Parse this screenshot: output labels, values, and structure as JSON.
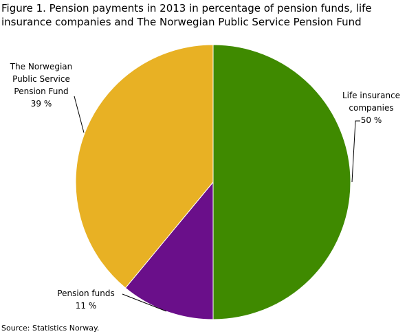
{
  "chart_data": {
    "type": "pie",
    "title": "Figure 1. Pension payments in 2013 in percentage of pension funds, life insurance companies and The Norwegian Public Service Pension Fund",
    "categories": [
      "Life insurance companies",
      "Pension funds",
      "The Norwegian Public Service Pension Fund"
    ],
    "values": [
      50,
      11,
      39
    ],
    "value_labels": [
      "50 %",
      "11 %",
      "39 %"
    ],
    "colors": [
      "#3f8a00",
      "#6a0f8a",
      "#e8b124"
    ],
    "source": "Source: Statistics Norway."
  }
}
